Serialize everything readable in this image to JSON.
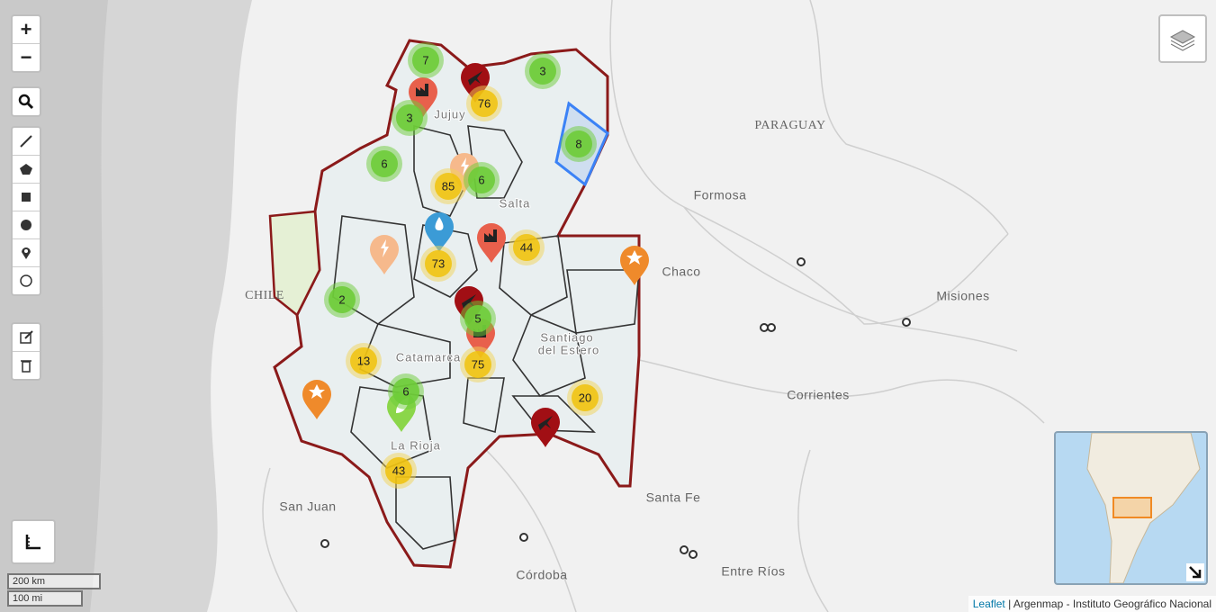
{
  "controls": {
    "zoom_in": "+",
    "zoom_out": "−"
  },
  "places": [
    "PARAGUAY",
    "Formosa",
    "Chaco",
    "Misiones",
    "CHILE",
    "Corrientes",
    "Santa Fe",
    "San Juan",
    "Córdoba",
    "Entre Ríos",
    "Salta",
    "Jujuy",
    "Santiago",
    "del Estero",
    "Catamarca",
    "La Rioja"
  ],
  "clusters": [
    {
      "count": 7,
      "color": "green"
    },
    {
      "count": 3,
      "color": "green"
    },
    {
      "count": 76,
      "color": "yellow"
    },
    {
      "count": 3,
      "color": "green"
    },
    {
      "count": 8,
      "color": "green"
    },
    {
      "count": 6,
      "color": "green"
    },
    {
      "count": 85,
      "color": "yellow"
    },
    {
      "count": 6,
      "color": "green"
    },
    {
      "count": 44,
      "color": "yellow"
    },
    {
      "count": 73,
      "color": "yellow"
    },
    {
      "count": 2,
      "color": "green"
    },
    {
      "count": 5,
      "color": "green"
    },
    {
      "count": 13,
      "color": "yellow"
    },
    {
      "count": 75,
      "color": "yellow"
    },
    {
      "count": 20,
      "color": "yellow"
    },
    {
      "count": 6,
      "color": "green"
    },
    {
      "count": 43,
      "color": "yellow"
    }
  ],
  "scale": {
    "metric": "200 km",
    "imperial": "100 mi"
  },
  "attribution": {
    "link": "Leaflet",
    "text": "| Argenmap - Instituto Geográfico Nacional"
  }
}
